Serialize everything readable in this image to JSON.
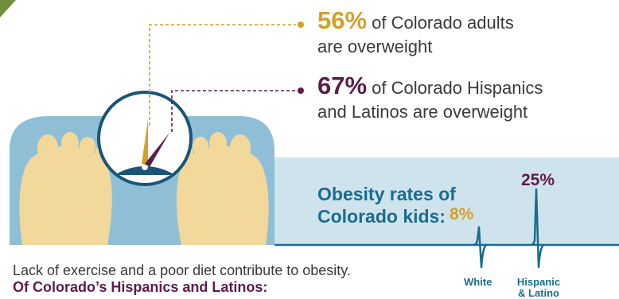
{
  "stats": [
    {
      "value": "56%",
      "text_line1": "of Colorado adults",
      "text_line2": "are overweight"
    },
    {
      "value": "67%",
      "text_line1": "of Colorado Hispanics",
      "text_line2": "and Latinos are overweight"
    }
  ],
  "obesity": {
    "title_line1": "Obesity rates of",
    "title_line2": "Colorado kids:"
  },
  "chart_data": {
    "type": "line",
    "categories": [
      "White",
      "Hispanic & Latino"
    ],
    "values": [
      8,
      25
    ],
    "value_labels": [
      "8%",
      "25%"
    ],
    "category_lines": [
      "White",
      "Hispanic",
      "& Latino"
    ]
  },
  "footer": {
    "line1": "Lack of exercise and a poor diet contribute to obesity.",
    "line2": "Of Colorado’s Hispanics and Latinos:"
  },
  "colors": {
    "gold": "#d3a02a",
    "plum": "#5c1d48",
    "teal": "#1a6c8f",
    "light_blue": "#cfe3ec",
    "scale_blue": "#8fbfd6",
    "foot": "#f2d89a",
    "green": "#6f8f3a"
  }
}
